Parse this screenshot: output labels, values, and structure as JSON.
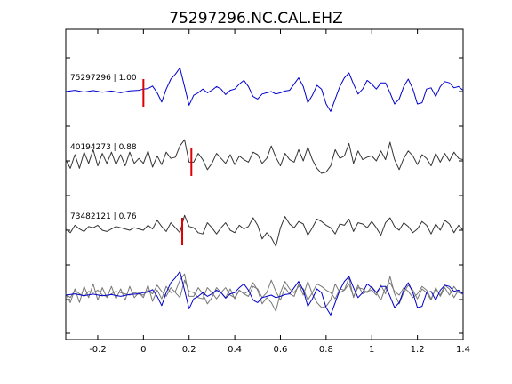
{
  "chart_data": {
    "type": "line",
    "title": "75297296.NC.CAL.EHZ",
    "xlabel": "",
    "ylabel": "",
    "xlim": [
      -0.34,
      1.4
    ],
    "x_ticks": [
      -0.2,
      0,
      0.2,
      0.4,
      0.6,
      0.8,
      1,
      1.2,
      1.4
    ],
    "y_ticks": [
      -1,
      0,
      1,
      2,
      3,
      4
    ],
    "ylim": [
      -1.5,
      4.5
    ],
    "grid": false,
    "colors": {
      "primary": "#0000cc",
      "secondary": "#333333",
      "overlay_gray": "#777777",
      "pick": "#dd0000"
    },
    "traces": [
      {
        "name": "75297296 | 1.00",
        "label": "75297296 | 1.00",
        "offset": 3,
        "color": "#0000cc",
        "pick_time": 0.0,
        "x": [
          -0.34,
          -0.3,
          -0.26,
          -0.22,
          -0.18,
          -0.14,
          -0.1,
          -0.06,
          -0.02,
          0.0,
          0.02,
          0.04,
          0.06,
          0.08,
          0.1,
          0.12,
          0.14,
          0.16,
          0.18,
          0.2,
          0.22,
          0.24,
          0.26,
          0.28,
          0.3,
          0.32,
          0.34,
          0.36,
          0.38,
          0.4,
          0.42,
          0.44,
          0.46,
          0.48,
          0.5,
          0.52,
          0.54,
          0.56,
          0.58,
          0.6,
          0.62,
          0.64,
          0.66,
          0.68,
          0.7,
          0.72,
          0.74,
          0.76,
          0.78,
          0.8,
          0.82,
          0.84,
          0.86,
          0.88,
          0.9,
          0.92,
          0.94,
          0.96,
          0.98,
          1.0,
          1.02,
          1.04,
          1.06,
          1.08,
          1.1,
          1.12,
          1.14,
          1.16,
          1.18,
          1.2,
          1.22,
          1.24,
          1.26,
          1.28,
          1.3,
          1.32,
          1.34,
          1.36,
          1.38,
          1.4
        ],
        "y": [
          0.0,
          0.05,
          -0.02,
          0.04,
          -0.03,
          0.02,
          -0.05,
          0.03,
          0.05,
          0.1,
          0.12,
          0.22,
          -0.05,
          -0.42,
          0.1,
          0.5,
          0.7,
          0.95,
          0.2,
          -0.55,
          -0.15,
          -0.05,
          0.1,
          -0.05,
          0.05,
          0.2,
          0.1,
          -0.12,
          0.05,
          0.1,
          0.3,
          0.45,
          0.2,
          -0.2,
          -0.3,
          -0.1,
          -0.05,
          0.0,
          -0.1,
          -0.05,
          0.02,
          0.05,
          0.3,
          0.55,
          0.2,
          -0.45,
          -0.15,
          0.25,
          0.1,
          -0.5,
          -0.8,
          -0.3,
          0.2,
          0.55,
          0.75,
          0.3,
          -0.1,
          0.1,
          0.45,
          0.3,
          0.1,
          0.35,
          0.35,
          -0.05,
          -0.5,
          -0.3,
          0.2,
          0.5,
          0.1,
          -0.5,
          -0.45,
          0.1,
          0.15,
          -0.2,
          0.2,
          0.4,
          0.35,
          0.15,
          0.2,
          0.05
        ]
      },
      {
        "name": "40194273 | 0.88",
        "label": "40194273 | 0.88",
        "offset": 2,
        "color": "#333333",
        "pick_time": 0.21,
        "x": [
          -0.34,
          -0.32,
          -0.3,
          -0.28,
          -0.26,
          -0.24,
          -0.22,
          -0.2,
          -0.18,
          -0.16,
          -0.14,
          -0.12,
          -0.1,
          -0.08,
          -0.06,
          -0.04,
          -0.02,
          0.0,
          0.02,
          0.04,
          0.06,
          0.08,
          0.1,
          0.12,
          0.14,
          0.16,
          0.18,
          0.2,
          0.22,
          0.24,
          0.26,
          0.28,
          0.3,
          0.32,
          0.34,
          0.36,
          0.38,
          0.4,
          0.42,
          0.44,
          0.46,
          0.48,
          0.5,
          0.52,
          0.54,
          0.56,
          0.58,
          0.6,
          0.62,
          0.64,
          0.66,
          0.68,
          0.7,
          0.72,
          0.74,
          0.76,
          0.78,
          0.8,
          0.82,
          0.84,
          0.86,
          0.88,
          0.9,
          0.92,
          0.94,
          0.96,
          0.98,
          1.0,
          1.02,
          1.04,
          1.06,
          1.08,
          1.1,
          1.12,
          1.14,
          1.16,
          1.18,
          1.2,
          1.22,
          1.24,
          1.26,
          1.28,
          1.3,
          1.32,
          1.34,
          1.36,
          1.38,
          1.4
        ],
        "y": [
          0.05,
          -0.3,
          0.25,
          -0.3,
          0.35,
          -0.1,
          0.45,
          -0.2,
          0.3,
          -0.1,
          0.35,
          -0.15,
          0.25,
          -0.2,
          0.35,
          -0.1,
          0.1,
          -0.1,
          0.4,
          -0.25,
          0.2,
          -0.15,
          0.35,
          0.1,
          0.15,
          0.6,
          0.85,
          -0.05,
          -0.05,
          0.3,
          0.05,
          -0.35,
          -0.1,
          0.3,
          0.1,
          -0.1,
          0.25,
          -0.15,
          0.2,
          0.05,
          -0.05,
          0.35,
          0.25,
          -0.1,
          0.1,
          0.6,
          0.15,
          -0.2,
          0.3,
          0.05,
          -0.05,
          0.45,
          0.0,
          0.55,
          0.05,
          -0.3,
          -0.5,
          -0.45,
          -0.2,
          0.45,
          0.1,
          0.2,
          0.7,
          -0.1,
          0.4,
          0.05,
          0.15,
          0.2,
          0.0,
          0.4,
          0.05,
          0.75,
          0.05,
          -0.35,
          0.1,
          0.4,
          0.2,
          -0.15,
          0.25,
          0.1,
          -0.2,
          0.3,
          -0.05,
          0.3,
          0.0,
          0.35,
          0.1,
          0.05
        ]
      },
      {
        "name": "73482121 | 0.76",
        "label": "73482121 | 0.76",
        "offset": 1,
        "color": "#333333",
        "pick_time": 0.17,
        "x": [
          -0.34,
          -0.32,
          -0.3,
          -0.28,
          -0.26,
          -0.24,
          -0.22,
          -0.2,
          -0.18,
          -0.16,
          -0.14,
          -0.12,
          -0.1,
          -0.08,
          -0.06,
          -0.04,
          -0.02,
          0.0,
          0.02,
          0.04,
          0.06,
          0.08,
          0.1,
          0.12,
          0.14,
          0.16,
          0.18,
          0.2,
          0.22,
          0.24,
          0.26,
          0.28,
          0.3,
          0.32,
          0.34,
          0.36,
          0.38,
          0.4,
          0.42,
          0.44,
          0.46,
          0.48,
          0.5,
          0.52,
          0.54,
          0.56,
          0.58,
          0.6,
          0.62,
          0.64,
          0.66,
          0.68,
          0.7,
          0.72,
          0.74,
          0.76,
          0.78,
          0.8,
          0.82,
          0.84,
          0.86,
          0.88,
          0.9,
          0.92,
          0.94,
          0.96,
          0.98,
          1.0,
          1.02,
          1.04,
          1.06,
          1.08,
          1.1,
          1.12,
          1.14,
          1.16,
          1.18,
          1.2,
          1.22,
          1.24,
          1.26,
          1.28,
          1.3,
          1.32,
          1.34,
          1.36,
          1.38,
          1.4
        ],
        "y": [
          0.05,
          -0.1,
          0.2,
          0.05,
          -0.05,
          0.15,
          0.1,
          0.2,
          0.0,
          -0.05,
          0.05,
          0.15,
          0.1,
          0.05,
          0.0,
          0.1,
          0.05,
          0.0,
          0.2,
          0.05,
          0.4,
          0.15,
          -0.05,
          0.3,
          0.1,
          -0.1,
          0.6,
          0.15,
          0.1,
          -0.1,
          -0.15,
          0.3,
          0.1,
          -0.15,
          0.1,
          0.3,
          0.0,
          -0.1,
          0.2,
          0.05,
          0.15,
          0.5,
          0.2,
          -0.35,
          -0.1,
          -0.3,
          -0.65,
          0.1,
          0.55,
          0.25,
          0.1,
          0.35,
          0.25,
          -0.2,
          0.1,
          0.45,
          0.35,
          0.2,
          0.1,
          -0.15,
          0.25,
          0.2,
          0.45,
          -0.05,
          0.3,
          0.25,
          0.1,
          0.35,
          0.1,
          -0.2,
          0.3,
          0.5,
          0.15,
          0.0,
          0.3,
          0.15,
          -0.1,
          0.05,
          0.35,
          0.2,
          -0.15,
          0.25,
          0.0,
          0.4,
          0.25,
          -0.1,
          0.2,
          0.0
        ]
      }
    ],
    "overlay": {
      "offset": -0.2,
      "description_series": [
        "75297296 | 1.00",
        "40194273 | 0.88",
        "73482121 | 0.76"
      ]
    }
  }
}
